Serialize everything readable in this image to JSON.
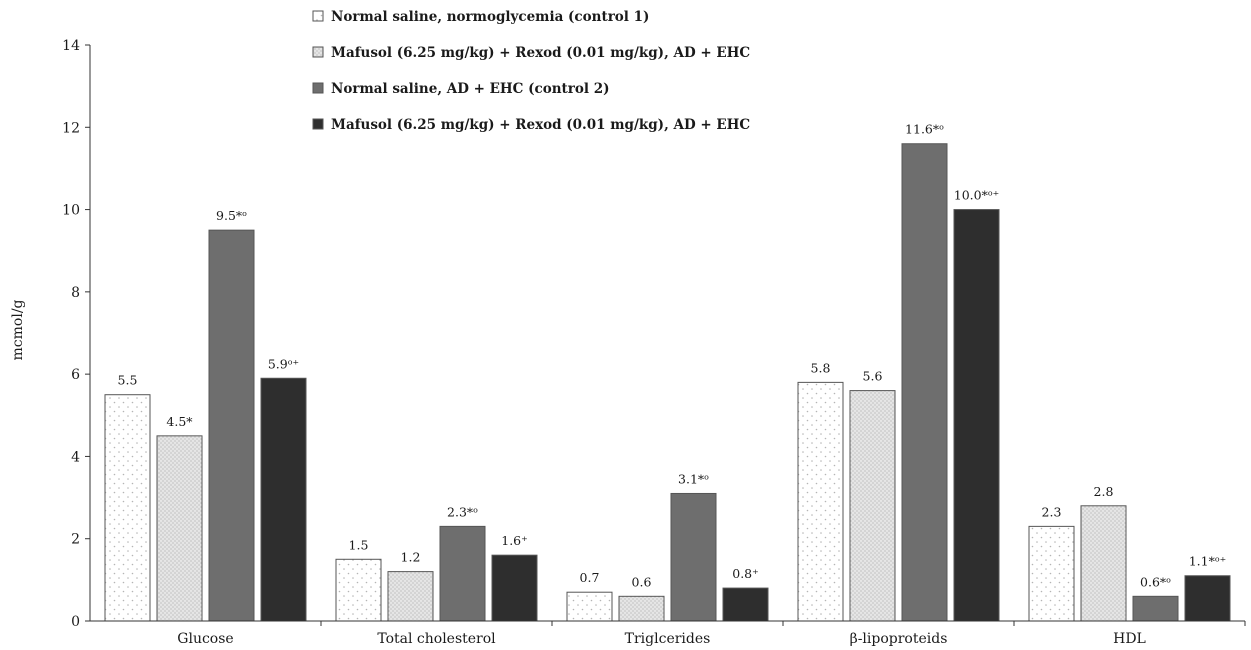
{
  "chart_data": {
    "type": "bar",
    "categories": [
      "Glucose",
      "Total cholesterol",
      "Triglcerides",
      "β-lipoproteids",
      "HDL"
    ],
    "ylabel": "mcmol/g",
    "xlabel": "",
    "ylim": [
      0,
      14
    ],
    "yticks": [
      "0",
      "2",
      "4",
      "6",
      "8",
      "10",
      "12",
      "14"
    ],
    "legend_position": "top-center",
    "grid": false,
    "series": [
      {
        "name": "Normal saline, normoglycemia (control 1)",
        "color": "#ffffff",
        "pattern": "sparse-dots",
        "values": [
          5.5,
          1.5,
          0.7,
          5.8,
          2.3
        ],
        "labels": [
          "5.5",
          "1.5",
          "0.7",
          "5.8",
          "2.3"
        ]
      },
      {
        "name": "Mafusol (6.25 mg/kg) + Rexod (0.01 mg/kg), AD + EHC",
        "color": "#cfcfcf",
        "pattern": "dense-dots",
        "values": [
          4.5,
          1.2,
          0.6,
          5.6,
          2.8
        ],
        "labels": [
          "4.5*",
          "1.2",
          "0.6",
          "5.6",
          "2.8"
        ]
      },
      {
        "name": "Normal saline, AD + EHC (control 2)",
        "color": "#6e6e6e",
        "pattern": "solid",
        "values": [
          9.5,
          2.3,
          3.1,
          11.6,
          0.6
        ],
        "labels": [
          "9.5*ᵒ",
          "2.3*ᵒ",
          "3.1*ᵒ",
          "11.6*ᵒ",
          "0.6*ᵒ"
        ]
      },
      {
        "name": "Mafusol (6.25 mg/kg) + Rexod (0.01 mg/kg), AD + EHC",
        "color": "#2e2e2e",
        "pattern": "solid",
        "values": [
          5.9,
          1.6,
          0.8,
          10.0,
          1.1
        ],
        "labels": [
          "5.9ᵒ⁺",
          "1.6⁺",
          "0.8⁺",
          "10.0*ᵒ⁺",
          "1.1*ᵒ⁺"
        ]
      }
    ]
  }
}
